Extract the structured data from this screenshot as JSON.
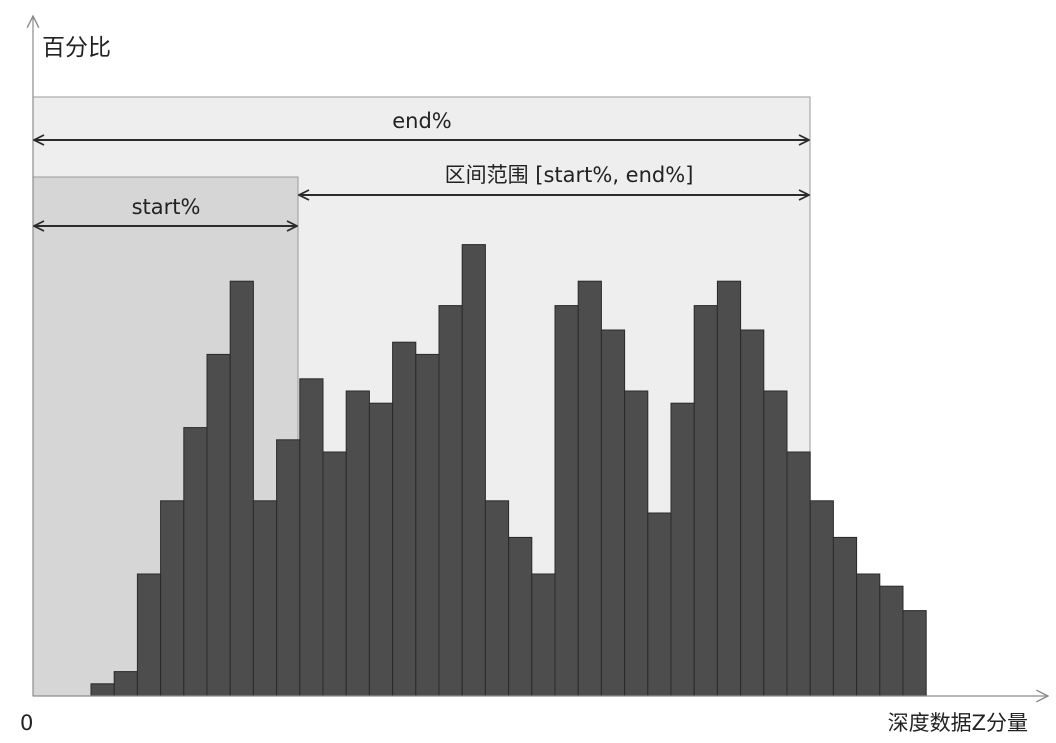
{
  "labels": {
    "y_axis": "百分比",
    "x_axis": "深度数据Z分量",
    "origin": "0",
    "end_label": "end%",
    "start_label": "start%",
    "range_label": "区间范围 [start%, end%]"
  },
  "colors": {
    "bar_fill": "#4d4d4d",
    "bar_stroke": "#2a2a2a",
    "end_region": "#eeeeee",
    "start_region": "#d6d6d6",
    "region_border": "#9a9a9a",
    "axis": "#8c8c8c",
    "arrow": "#2b2b2b"
  },
  "chart_data": {
    "type": "bar",
    "values": [
      1,
      2,
      10,
      16,
      22,
      28,
      34,
      16,
      21,
      26,
      20,
      25,
      24,
      29,
      28,
      32,
      37,
      16,
      13,
      10,
      32,
      34,
      30,
      25,
      15,
      24,
      32,
      34,
      30,
      25,
      20,
      16,
      13,
      10,
      9,
      7
    ],
    "ylim": [
      0,
      43
    ],
    "start_bin": 11.5,
    "end_bin": 33.5
  }
}
